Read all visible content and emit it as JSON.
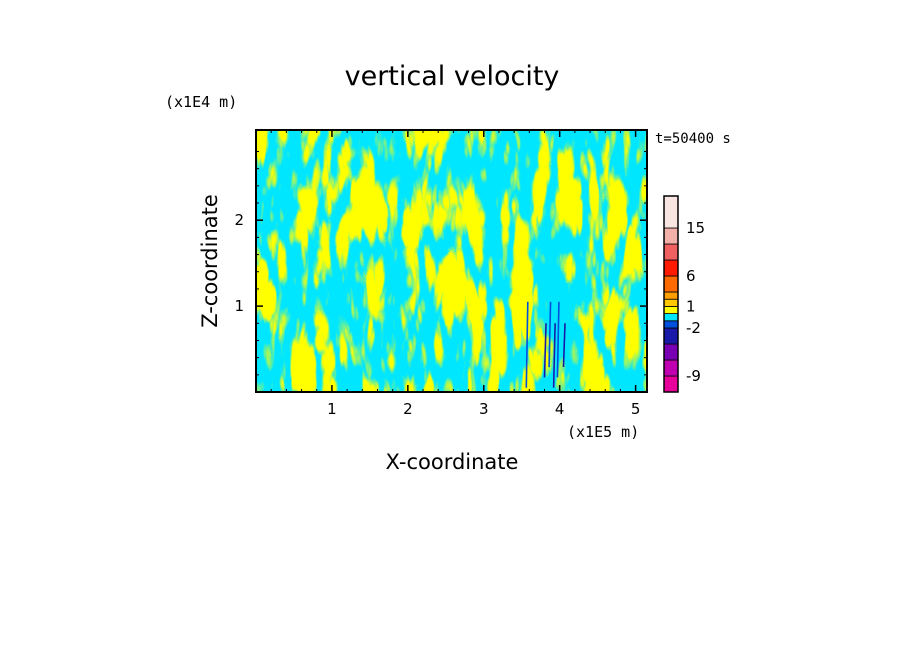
{
  "chart_data": {
    "type": "heatmap",
    "title": "vertical velocity",
    "xlabel": "X-coordinate",
    "ylabel": "Z-coordinate",
    "x_unit_label": "(x1E5 m)",
    "y_unit_label": "(x1E4 m)",
    "time_label": "t=50400 s",
    "xlim": [
      0,
      5.15
    ],
    "ylim": [
      0,
      3.05
    ],
    "x_ticks": [
      "1",
      "2",
      "3",
      "4",
      "5"
    ],
    "y_ticks": [
      "1",
      "2"
    ],
    "x_tick_values": [
      1,
      2,
      3,
      4,
      5
    ],
    "y_tick_values": [
      1,
      2
    ],
    "colorbar": {
      "levels": [
        {
          "lower": -12,
          "color": "#e8009a"
        },
        {
          "lower": -9,
          "color": "#c000b0"
        },
        {
          "lower": -6,
          "color": "#7a00b4"
        },
        {
          "lower": -3,
          "color": "#1a1aa8"
        },
        {
          "lower": -2,
          "color": "#0050e0"
        },
        {
          "lower": -1,
          "color": "#00e6ff"
        },
        {
          "lower": 0,
          "color": "#ffff00"
        },
        {
          "lower": 1,
          "color": "#ffc800"
        },
        {
          "lower": 2,
          "color": "#ffa000"
        },
        {
          "lower": 3,
          "color": "#ff6a00"
        },
        {
          "lower": 6,
          "color": "#ff1a00"
        },
        {
          "lower": 9,
          "color": "#f06060"
        },
        {
          "lower": 12,
          "color": "#f2b0a8"
        },
        {
          "lower": 15,
          "color": "#f8e4e0"
        }
      ],
      "tick_labels": [
        "15",
        "6",
        "1",
        "-2",
        "-9"
      ],
      "tick_values": [
        15,
        6,
        1,
        -2,
        -9
      ]
    },
    "dominant_colors": {
      "positive": "#ffff00",
      "negative": "#00e6ff"
    }
  }
}
